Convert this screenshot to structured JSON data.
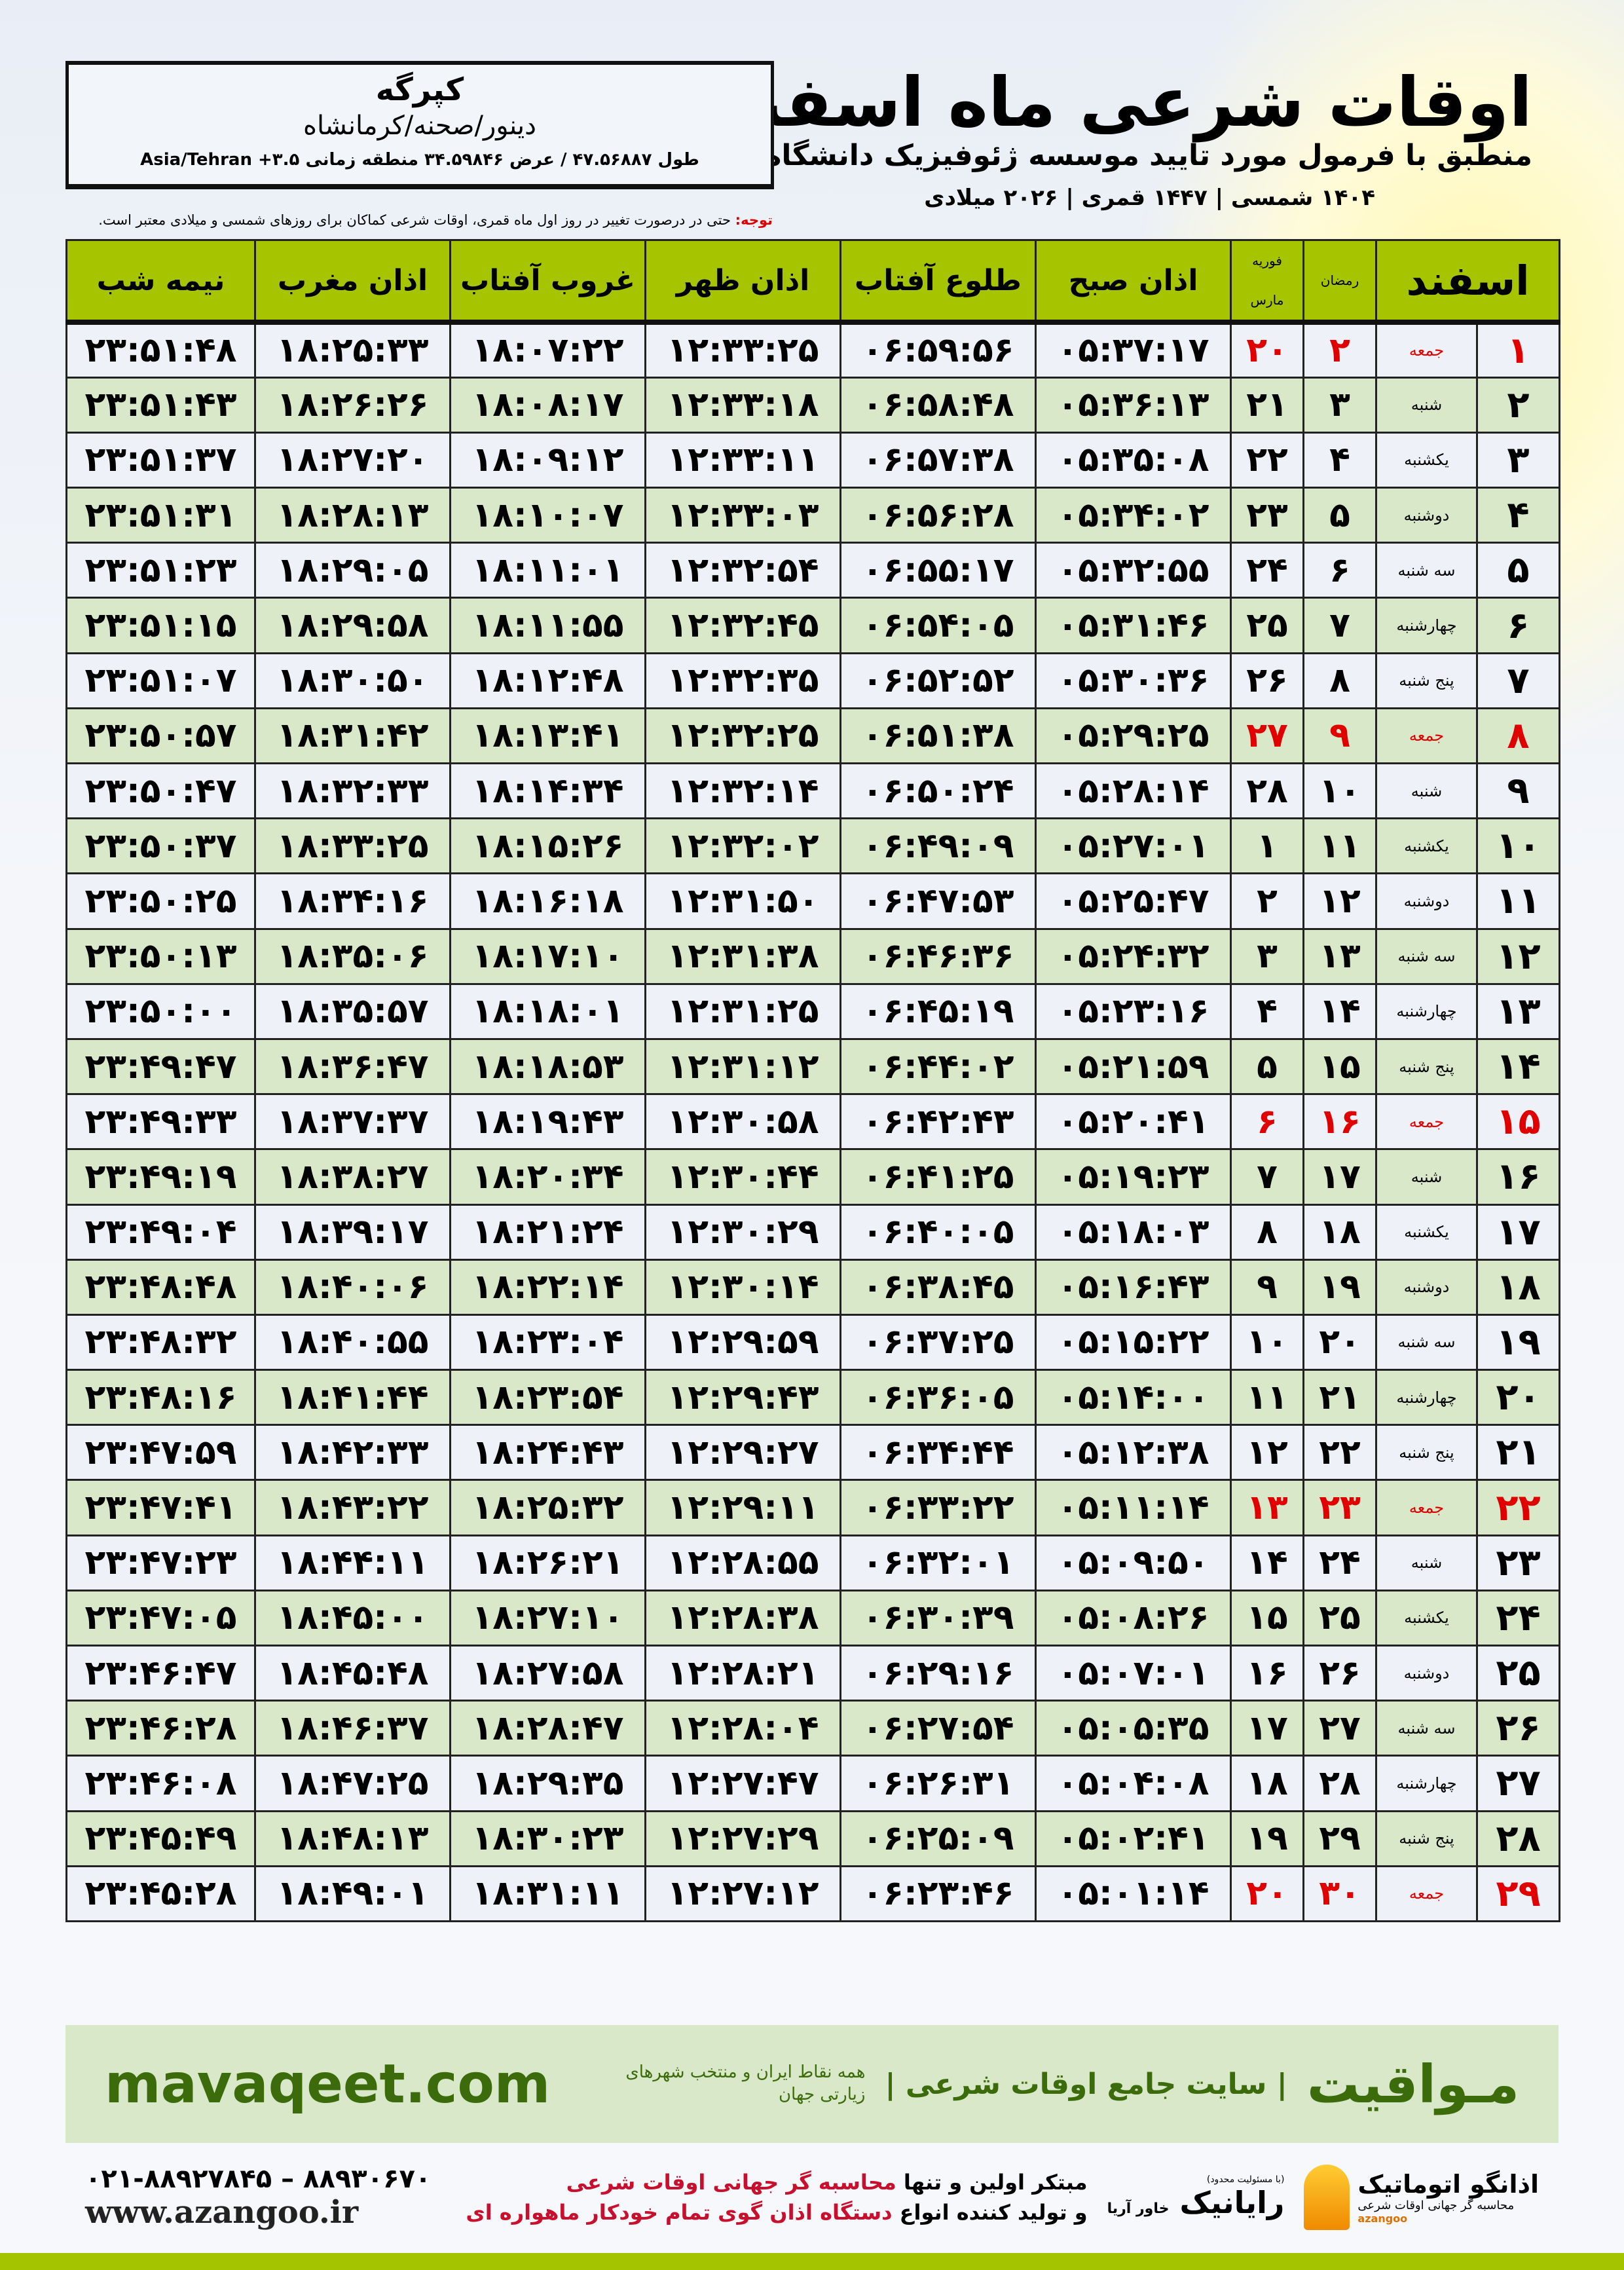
{
  "header": {
    "title": "اوقات شرعی ماه اسفند",
    "subtitle": "منطبق با فرمول مورد تایید موسسه ژئوفیزیک دانشگاه تهران",
    "dates": "۱۴۰۴ شمسی | ۱۴۴۷ قمری | ۲۰۲۶ میلادی"
  },
  "info": {
    "city": "کپرگه",
    "region": "دینور/صحنه/کرمانشاه",
    "coords": "طول ۴۷.۵۶۸۸۷ / عرض ۳۴.۵۹۸۴۶ منطقه زمانی ۳.۵+ Asia/Tehran"
  },
  "note": {
    "label": "توجه:",
    "text": " حتی در درصورت تغییر در روز اول ماه قمری، اوقات شرعی کماکان برای روزهای شمسی و میلادی معتبر است."
  },
  "table": {
    "headers": {
      "month": "اسفند",
      "ramadan": "رمضان",
      "feb": "فوریه",
      "mar": "مارس",
      "sobh": "اذان صبح",
      "tolu": "طلوع آفتاب",
      "zohr": "اذان ظهر",
      "ghorub": "غروب آفتاب",
      "maghrib": "اذان مغرب",
      "nimeh": "نیمه شب"
    },
    "highlight_color": "#e00000",
    "rows": [
      [
        "۱",
        "جمعه",
        "۲",
        "۲۰",
        "۰۵:۳۷:۱۷",
        "۰۶:۵۹:۵۶",
        "۱۲:۳۳:۲۵",
        "۱۸:۰۷:۲۲",
        "۱۸:۲۵:۳۳",
        "۲۳:۵۱:۴۸"
      ],
      [
        "۲",
        "شنبه",
        "۳",
        "۲۱",
        "۰۵:۳۶:۱۳",
        "۰۶:۵۸:۴۸",
        "۱۲:۳۳:۱۸",
        "۱۸:۰۸:۱۷",
        "۱۸:۲۶:۲۶",
        "۲۳:۵۱:۴۳"
      ],
      [
        "۳",
        "یکشنبه",
        "۴",
        "۲۲",
        "۰۵:۳۵:۰۸",
        "۰۶:۵۷:۳۸",
        "۱۲:۳۳:۱۱",
        "۱۸:۰۹:۱۲",
        "۱۸:۲۷:۲۰",
        "۲۳:۵۱:۳۷"
      ],
      [
        "۴",
        "دوشنبه",
        "۵",
        "۲۳",
        "۰۵:۳۴:۰۲",
        "۰۶:۵۶:۲۸",
        "۱۲:۳۳:۰۳",
        "۱۸:۱۰:۰۷",
        "۱۸:۲۸:۱۳",
        "۲۳:۵۱:۳۱"
      ],
      [
        "۵",
        "سه شنبه",
        "۶",
        "۲۴",
        "۰۵:۳۲:۵۵",
        "۰۶:۵۵:۱۷",
        "۱۲:۳۲:۵۴",
        "۱۸:۱۱:۰۱",
        "۱۸:۲۹:۰۵",
        "۲۳:۵۱:۲۳"
      ],
      [
        "۶",
        "چهارشنبه",
        "۷",
        "۲۵",
        "۰۵:۳۱:۴۶",
        "۰۶:۵۴:۰۵",
        "۱۲:۳۲:۴۵",
        "۱۸:۱۱:۵۵",
        "۱۸:۲۹:۵۸",
        "۲۳:۵۱:۱۵"
      ],
      [
        "۷",
        "پنج شنبه",
        "۸",
        "۲۶",
        "۰۵:۳۰:۳۶",
        "۰۶:۵۲:۵۲",
        "۱۲:۳۲:۳۵",
        "۱۸:۱۲:۴۸",
        "۱۸:۳۰:۵۰",
        "۲۳:۵۱:۰۷"
      ],
      [
        "۸",
        "جمعه",
        "۹",
        "۲۷",
        "۰۵:۲۹:۲۵",
        "۰۶:۵۱:۳۸",
        "۱۲:۳۲:۲۵",
        "۱۸:۱۳:۴۱",
        "۱۸:۳۱:۴۲",
        "۲۳:۵۰:۵۷"
      ],
      [
        "۹",
        "شنبه",
        "۱۰",
        "۲۸",
        "۰۵:۲۸:۱۴",
        "۰۶:۵۰:۲۴",
        "۱۲:۳۲:۱۴",
        "۱۸:۱۴:۳۴",
        "۱۸:۳۲:۳۳",
        "۲۳:۵۰:۴۷"
      ],
      [
        "۱۰",
        "یکشنبه",
        "۱۱",
        "۱",
        "۰۵:۲۷:۰۱",
        "۰۶:۴۹:۰۹",
        "۱۲:۳۲:۰۲",
        "۱۸:۱۵:۲۶",
        "۱۸:۳۳:۲۵",
        "۲۳:۵۰:۳۷"
      ],
      [
        "۱۱",
        "دوشنبه",
        "۱۲",
        "۲",
        "۰۵:۲۵:۴۷",
        "۰۶:۴۷:۵۳",
        "۱۲:۳۱:۵۰",
        "۱۸:۱۶:۱۸",
        "۱۸:۳۴:۱۶",
        "۲۳:۵۰:۲۵"
      ],
      [
        "۱۲",
        "سه شنبه",
        "۱۳",
        "۳",
        "۰۵:۲۴:۳۲",
        "۰۶:۴۶:۳۶",
        "۱۲:۳۱:۳۸",
        "۱۸:۱۷:۱۰",
        "۱۸:۳۵:۰۶",
        "۲۳:۵۰:۱۳"
      ],
      [
        "۱۳",
        "چهارشنبه",
        "۱۴",
        "۴",
        "۰۵:۲۳:۱۶",
        "۰۶:۴۵:۱۹",
        "۱۲:۳۱:۲۵",
        "۱۸:۱۸:۰۱",
        "۱۸:۳۵:۵۷",
        "۲۳:۵۰:۰۰"
      ],
      [
        "۱۴",
        "پنج شنبه",
        "۱۵",
        "۵",
        "۰۵:۲۱:۵۹",
        "۰۶:۴۴:۰۲",
        "۱۲:۳۱:۱۲",
        "۱۸:۱۸:۵۳",
        "۱۸:۳۶:۴۷",
        "۲۳:۴۹:۴۷"
      ],
      [
        "۱۵",
        "جمعه",
        "۱۶",
        "۶",
        "۰۵:۲۰:۴۱",
        "۰۶:۴۲:۴۳",
        "۱۲:۳۰:۵۸",
        "۱۸:۱۹:۴۳",
        "۱۸:۳۷:۳۷",
        "۲۳:۴۹:۳۳"
      ],
      [
        "۱۶",
        "شنبه",
        "۱۷",
        "۷",
        "۰۵:۱۹:۲۳",
        "۰۶:۴۱:۲۵",
        "۱۲:۳۰:۴۴",
        "۱۸:۲۰:۳۴",
        "۱۸:۳۸:۲۷",
        "۲۳:۴۹:۱۹"
      ],
      [
        "۱۷",
        "یکشنبه",
        "۱۸",
        "۸",
        "۰۵:۱۸:۰۳",
        "۰۶:۴۰:۰۵",
        "۱۲:۳۰:۲۹",
        "۱۸:۲۱:۲۴",
        "۱۸:۳۹:۱۷",
        "۲۳:۴۹:۰۴"
      ],
      [
        "۱۸",
        "دوشنبه",
        "۱۹",
        "۹",
        "۰۵:۱۶:۴۳",
        "۰۶:۳۸:۴۵",
        "۱۲:۳۰:۱۴",
        "۱۸:۲۲:۱۴",
        "۱۸:۴۰:۰۶",
        "۲۳:۴۸:۴۸"
      ],
      [
        "۱۹",
        "سه شنبه",
        "۲۰",
        "۱۰",
        "۰۵:۱۵:۲۲",
        "۰۶:۳۷:۲۵",
        "۱۲:۲۹:۵۹",
        "۱۸:۲۳:۰۴",
        "۱۸:۴۰:۵۵",
        "۲۳:۴۸:۳۲"
      ],
      [
        "۲۰",
        "چهارشنبه",
        "۲۱",
        "۱۱",
        "۰۵:۱۴:۰۰",
        "۰۶:۳۶:۰۵",
        "۱۲:۲۹:۴۳",
        "۱۸:۲۳:۵۴",
        "۱۸:۴۱:۴۴",
        "۲۳:۴۸:۱۶"
      ],
      [
        "۲۱",
        "پنج شنبه",
        "۲۲",
        "۱۲",
        "۰۵:۱۲:۳۸",
        "۰۶:۳۴:۴۴",
        "۱۲:۲۹:۲۷",
        "۱۸:۲۴:۴۳",
        "۱۸:۴۲:۳۳",
        "۲۳:۴۷:۵۹"
      ],
      [
        "۲۲",
        "جمعه",
        "۲۳",
        "۱۳",
        "۰۵:۱۱:۱۴",
        "۰۶:۳۳:۲۲",
        "۱۲:۲۹:۱۱",
        "۱۸:۲۵:۳۲",
        "۱۸:۴۳:۲۲",
        "۲۳:۴۷:۴۱"
      ],
      [
        "۲۳",
        "شنبه",
        "۲۴",
        "۱۴",
        "۰۵:۰۹:۵۰",
        "۰۶:۳۲:۰۱",
        "۱۲:۲۸:۵۵",
        "۱۸:۲۶:۲۱",
        "۱۸:۴۴:۱۱",
        "۲۳:۴۷:۲۳"
      ],
      [
        "۲۴",
        "یکشنبه",
        "۲۵",
        "۱۵",
        "۰۵:۰۸:۲۶",
        "۰۶:۳۰:۳۹",
        "۱۲:۲۸:۳۸",
        "۱۸:۲۷:۱۰",
        "۱۸:۴۵:۰۰",
        "۲۳:۴۷:۰۵"
      ],
      [
        "۲۵",
        "دوشنبه",
        "۲۶",
        "۱۶",
        "۰۵:۰۷:۰۱",
        "۰۶:۲۹:۱۶",
        "۱۲:۲۸:۲۱",
        "۱۸:۲۷:۵۸",
        "۱۸:۴۵:۴۸",
        "۲۳:۴۶:۴۷"
      ],
      [
        "۲۶",
        "سه شنبه",
        "۲۷",
        "۱۷",
        "۰۵:۰۵:۳۵",
        "۰۶:۲۷:۵۴",
        "۱۲:۲۸:۰۴",
        "۱۸:۲۸:۴۷",
        "۱۸:۴۶:۳۷",
        "۲۳:۴۶:۲۸"
      ],
      [
        "۲۷",
        "چهارشنبه",
        "۲۸",
        "۱۸",
        "۰۵:۰۴:۰۸",
        "۰۶:۲۶:۳۱",
        "۱۲:۲۷:۴۷",
        "۱۸:۲۹:۳۵",
        "۱۸:۴۷:۲۵",
        "۲۳:۴۶:۰۸"
      ],
      [
        "۲۸",
        "پنج شنبه",
        "۲۹",
        "۱۹",
        "۰۵:۰۲:۴۱",
        "۰۶:۲۵:۰۹",
        "۱۲:۲۷:۲۹",
        "۱۸:۳۰:۲۳",
        "۱۸:۴۸:۱۳",
        "۲۳:۴۵:۴۹"
      ],
      [
        "۲۹",
        "جمعه",
        "۳۰",
        "۲۰",
        "۰۵:۰۱:۱۴",
        "۰۶:۲۳:۴۶",
        "۱۲:۲۷:۱۲",
        "۱۸:۳۱:۱۱",
        "۱۸:۴۹:۰۱",
        "۲۳:۴۵:۲۸"
      ]
    ]
  },
  "footer": {
    "site": "mavaqeet.com",
    "brand": "مـواقیت",
    "brand_sub": "| سایت جامع اوقات شرعی |",
    "brand_sub2": "همه نقاط ایران و منتخب شهرهای زیارتی جهان",
    "phone": "۰۲۱-۸۸۹۲۷۸۴۵ – ۸۸۹۳۰۶۷۰",
    "web": "www.azangoo.ir",
    "promo1a": "مبتکر اولین و تنها ",
    "promo1b": "محاسبه گر جهانی اوقات شرعی",
    "promo2a": "و تولید کننده انواع ",
    "promo2b": "دستگاه اذان گوی تمام خودکار ماهواره ای",
    "rayanik": "رایانیک",
    "rayanik_sub": "خاور آریا",
    "rayanik_note": "(با مسئولیت محدود)",
    "azangoo": "اذانگو اتوماتیک",
    "azangoo_sub": "محاسبه گر جهانی اوقات شرعی",
    "azangoo_en": "azangoo",
    "accent": "#a5c400",
    "band_color": "#d9e8c8",
    "text_green": "#3b6b0a"
  }
}
